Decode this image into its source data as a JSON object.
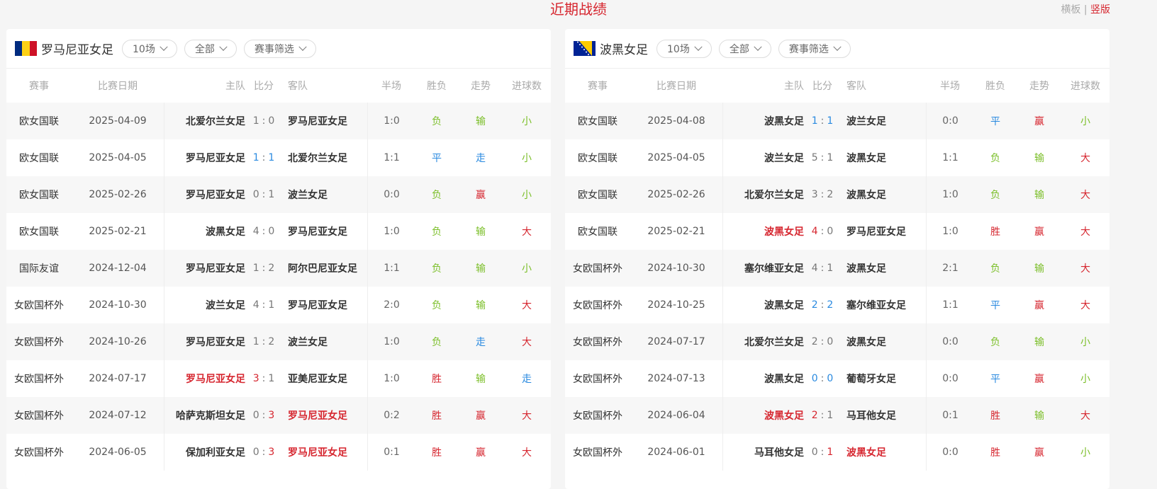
{
  "title": "近期战绩",
  "view_switch": {
    "horizontal": "横板",
    "separator": "|",
    "vertical": "竖版"
  },
  "colors": {
    "accent": "#d6262f",
    "win": "#d6262f",
    "draw": "#2a8ae0",
    "loss": "#7cbf2a"
  },
  "headers": [
    "赛事",
    "比赛日期",
    "主队",
    "比分",
    "客队",
    "半场",
    "胜负",
    "走势",
    "进球数"
  ],
  "panels": [
    {
      "team": "罗马尼亚女足",
      "flag": "romania-flag",
      "filters": [
        "10场",
        "全部",
        "赛事筛选"
      ],
      "rows": [
        [
          "欧女国联",
          "2025-04-09",
          "北爱尔兰女足",
          "1",
          "0",
          "罗马尼亚女足",
          "1:0",
          "负",
          "输",
          "小"
        ],
        [
          "欧女国联",
          "2025-04-05",
          "罗马尼亚女足",
          "1",
          "1",
          "北爱尔兰女足",
          "1:1",
          "平",
          "走",
          "小"
        ],
        [
          "欧女国联",
          "2025-02-26",
          "罗马尼亚女足",
          "0",
          "1",
          "波兰女足",
          "0:0",
          "负",
          "赢",
          "小"
        ],
        [
          "欧女国联",
          "2025-02-21",
          "波黑女足",
          "4",
          "0",
          "罗马尼亚女足",
          "1:0",
          "负",
          "输",
          "大"
        ],
        [
          "国际友谊",
          "2024-12-04",
          "罗马尼亚女足",
          "1",
          "2",
          "阿尔巴尼亚女足",
          "1:1",
          "负",
          "输",
          "小"
        ],
        [
          "女欧国杯外",
          "2024-10-30",
          "波兰女足",
          "4",
          "1",
          "罗马尼亚女足",
          "2:0",
          "负",
          "输",
          "大"
        ],
        [
          "女欧国杯外",
          "2024-10-26",
          "罗马尼亚女足",
          "1",
          "2",
          "波兰女足",
          "1:0",
          "负",
          "走",
          "大"
        ],
        [
          "女欧国杯外",
          "2024-07-17",
          "罗马尼亚女足",
          "3",
          "1",
          "亚美尼亚女足",
          "1:0",
          "胜",
          "输",
          "走"
        ],
        [
          "女欧国杯外",
          "2024-07-12",
          "哈萨克斯坦女足",
          "0",
          "3",
          "罗马尼亚女足",
          "0:2",
          "胜",
          "赢",
          "大"
        ],
        [
          "女欧国杯外",
          "2024-06-05",
          "保加利亚女足",
          "0",
          "3",
          "罗马尼亚女足",
          "0:1",
          "胜",
          "赢",
          "大"
        ]
      ]
    },
    {
      "team": "波黑女足",
      "flag": "bosnia-flag",
      "filters": [
        "10场",
        "全部",
        "赛事筛选"
      ],
      "rows": [
        [
          "欧女国联",
          "2025-04-08",
          "波黑女足",
          "1",
          "1",
          "波兰女足",
          "0:0",
          "平",
          "赢",
          "小"
        ],
        [
          "欧女国联",
          "2025-04-05",
          "波兰女足",
          "5",
          "1",
          "波黑女足",
          "1:1",
          "负",
          "输",
          "大"
        ],
        [
          "欧女国联",
          "2025-02-26",
          "北爱尔兰女足",
          "3",
          "2",
          "波黑女足",
          "1:0",
          "负",
          "输",
          "大"
        ],
        [
          "欧女国联",
          "2025-02-21",
          "波黑女足",
          "4",
          "0",
          "罗马尼亚女足",
          "1:0",
          "胜",
          "赢",
          "大"
        ],
        [
          "女欧国杯外",
          "2024-10-30",
          "塞尔维亚女足",
          "4",
          "1",
          "波黑女足",
          "2:1",
          "负",
          "输",
          "大"
        ],
        [
          "女欧国杯外",
          "2024-10-25",
          "波黑女足",
          "2",
          "2",
          "塞尔维亚女足",
          "1:1",
          "平",
          "赢",
          "大"
        ],
        [
          "女欧国杯外",
          "2024-07-17",
          "北爱尔兰女足",
          "2",
          "0",
          "波黑女足",
          "0:0",
          "负",
          "输",
          "小"
        ],
        [
          "女欧国杯外",
          "2024-07-13",
          "波黑女足",
          "0",
          "0",
          "葡萄牙女足",
          "0:0",
          "平",
          "赢",
          "小"
        ],
        [
          "女欧国杯外",
          "2024-06-04",
          "波黑女足",
          "2",
          "1",
          "马耳他女足",
          "0:1",
          "胜",
          "输",
          "大"
        ],
        [
          "女欧国杯外",
          "2024-06-01",
          "马耳他女足",
          "0",
          "1",
          "波黑女足",
          "0:0",
          "胜",
          "赢",
          "小"
        ]
      ]
    }
  ]
}
